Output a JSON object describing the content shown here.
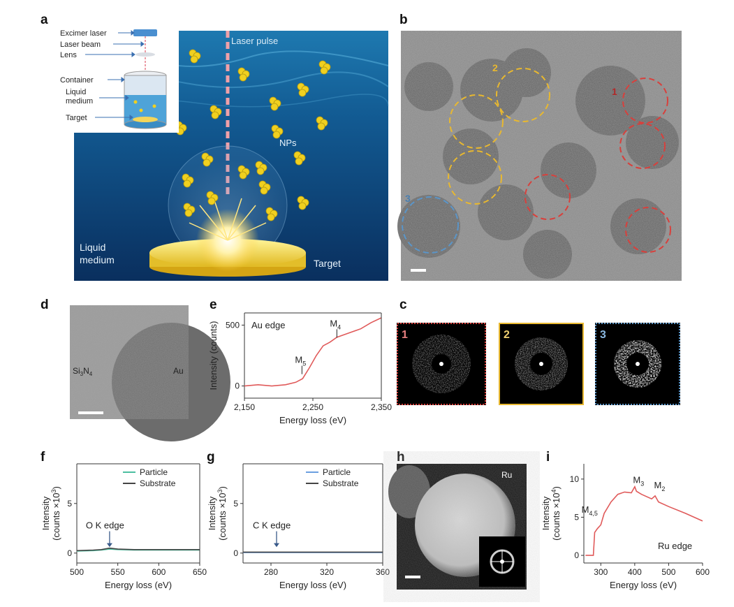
{
  "panels": {
    "a": "a",
    "b": "b",
    "c": "c",
    "d": "d",
    "e": "e",
    "f": "f",
    "g": "g",
    "h": "h",
    "i": "i"
  },
  "panel_a": {
    "inset_labels": [
      "Excimer laser",
      "Laser beam",
      "Lens",
      "Container",
      "Liquid",
      "medium",
      "Target"
    ],
    "laser_pulse": "Laser pulse",
    "nps": "NPs",
    "liquid_medium_1": "Liquid",
    "liquid_medium_2": "medium",
    "target": "Target"
  },
  "panel_b": {
    "region_labels": [
      "1",
      "2",
      "3"
    ],
    "region_colors": {
      "1": "#d8403c",
      "2": "#e8b830",
      "3": "#5b95c8"
    }
  },
  "panel_c": {
    "tiles": [
      "1",
      "2",
      "3"
    ]
  },
  "panel_d": {
    "si3n4_base": "Si",
    "si3n4_sub1": "3",
    "si3n4_mid": "N",
    "si3n4_sub2": "4",
    "au": "Au"
  },
  "panel_h": {
    "label": "Ru"
  },
  "chart_data": [
    {
      "panel": "e",
      "type": "line",
      "title": "Au edge",
      "xlabel": "Energy loss (eV)",
      "ylabel": "Intensity (counts)",
      "xlim": [
        2150,
        2350
      ],
      "ylim": [
        -100,
        600
      ],
      "xticks": [
        "2,150",
        "2,250",
        "2,350"
      ],
      "yticks": [
        "0",
        "500"
      ],
      "x": [
        2150,
        2170,
        2190,
        2210,
        2225,
        2235,
        2245,
        2255,
        2265,
        2275,
        2285,
        2295,
        2305,
        2320,
        2335,
        2350
      ],
      "y": [
        0,
        10,
        0,
        10,
        30,
        60,
        150,
        250,
        330,
        360,
        400,
        420,
        440,
        470,
        520,
        560
      ],
      "annotations": [
        {
          "text": "M",
          "sub": "5",
          "x": 2232
        },
        {
          "text": "M",
          "sub": "4",
          "x": 2283
        }
      ],
      "color": "#e05a5a"
    },
    {
      "panel": "f",
      "type": "line",
      "xlabel": "Energy loss (eV)",
      "ylabel": "Intensity",
      "ylabel2": "(counts ×10",
      "ylabel_sup": "3",
      "ylabel_end": ")",
      "xlim": [
        500,
        650
      ],
      "ylim": [
        -1,
        9
      ],
      "xticks": [
        "500",
        "550",
        "600",
        "650"
      ],
      "yticks": [
        "0",
        "5"
      ],
      "series": [
        {
          "name": "Particle",
          "color": "#4cbfa0",
          "x": [
            500,
            520,
            530,
            540,
            550,
            570,
            600,
            650
          ],
          "y": [
            0.2,
            0.25,
            0.3,
            0.4,
            0.35,
            0.3,
            0.3,
            0.3
          ]
        },
        {
          "name": "Substrate",
          "color": "#444444",
          "x": [
            500,
            520,
            530,
            540,
            550,
            570,
            600,
            650
          ],
          "y": [
            0.25,
            0.3,
            0.35,
            0.5,
            0.4,
            0.35,
            0.35,
            0.35
          ]
        }
      ],
      "annotation": "O K edge",
      "annotation_x": 540
    },
    {
      "panel": "g",
      "type": "line",
      "xlabel": "Energy loss (eV)",
      "ylabel": "Intensity",
      "ylabel2": "(counts ×10",
      "ylabel_sup": "3",
      "ylabel_end": ")",
      "xlim": [
        260,
        360
      ],
      "ylim": [
        -1,
        9
      ],
      "xticks": [
        "280",
        "320",
        "360"
      ],
      "yticks": [
        "0",
        "5"
      ],
      "series": [
        {
          "name": "Particle",
          "color": "#6b9fe0",
          "x": [
            260,
            280,
            300,
            320,
            340,
            360
          ],
          "y": [
            0.05,
            0.05,
            0.05,
            0.05,
            0.05,
            0.05
          ]
        },
        {
          "name": "Substrate",
          "color": "#444444",
          "x": [
            260,
            280,
            300,
            320,
            340,
            360
          ],
          "y": [
            0.1,
            0.1,
            0.1,
            0.1,
            0.1,
            0.1
          ]
        }
      ],
      "annotation": "C K edge",
      "annotation_x": 284
    },
    {
      "panel": "i",
      "type": "line",
      "xlabel": "Energy loss (eV)",
      "ylabel": "Intensity",
      "ylabel2": "(counts ×10",
      "ylabel_sup": "4",
      "ylabel_end": ")",
      "title": "Ru edge",
      "xlim": [
        250,
        600
      ],
      "ylim": [
        -1,
        12
      ],
      "xticks": [
        "300",
        "400",
        "500",
        "600"
      ],
      "yticks": [
        "0",
        "5",
        "10"
      ],
      "x": [
        255,
        270,
        278,
        282,
        290,
        300,
        310,
        330,
        350,
        370,
        390,
        400,
        405,
        420,
        450,
        460,
        470,
        500,
        550,
        600
      ],
      "y": [
        0,
        0,
        0,
        3,
        3.5,
        4,
        5.5,
        7,
        8,
        8.3,
        8.2,
        9,
        8.4,
        8.0,
        7.4,
        7.8,
        7.0,
        6.4,
        5.5,
        4.5
      ],
      "annotations": [
        {
          "text": "M",
          "sub": "4,5",
          "x": 275
        },
        {
          "text": "M",
          "sub": "3",
          "x": 405
        },
        {
          "text": "M",
          "sub": "2",
          "x": 463
        }
      ],
      "color": "#e05a5a"
    }
  ]
}
